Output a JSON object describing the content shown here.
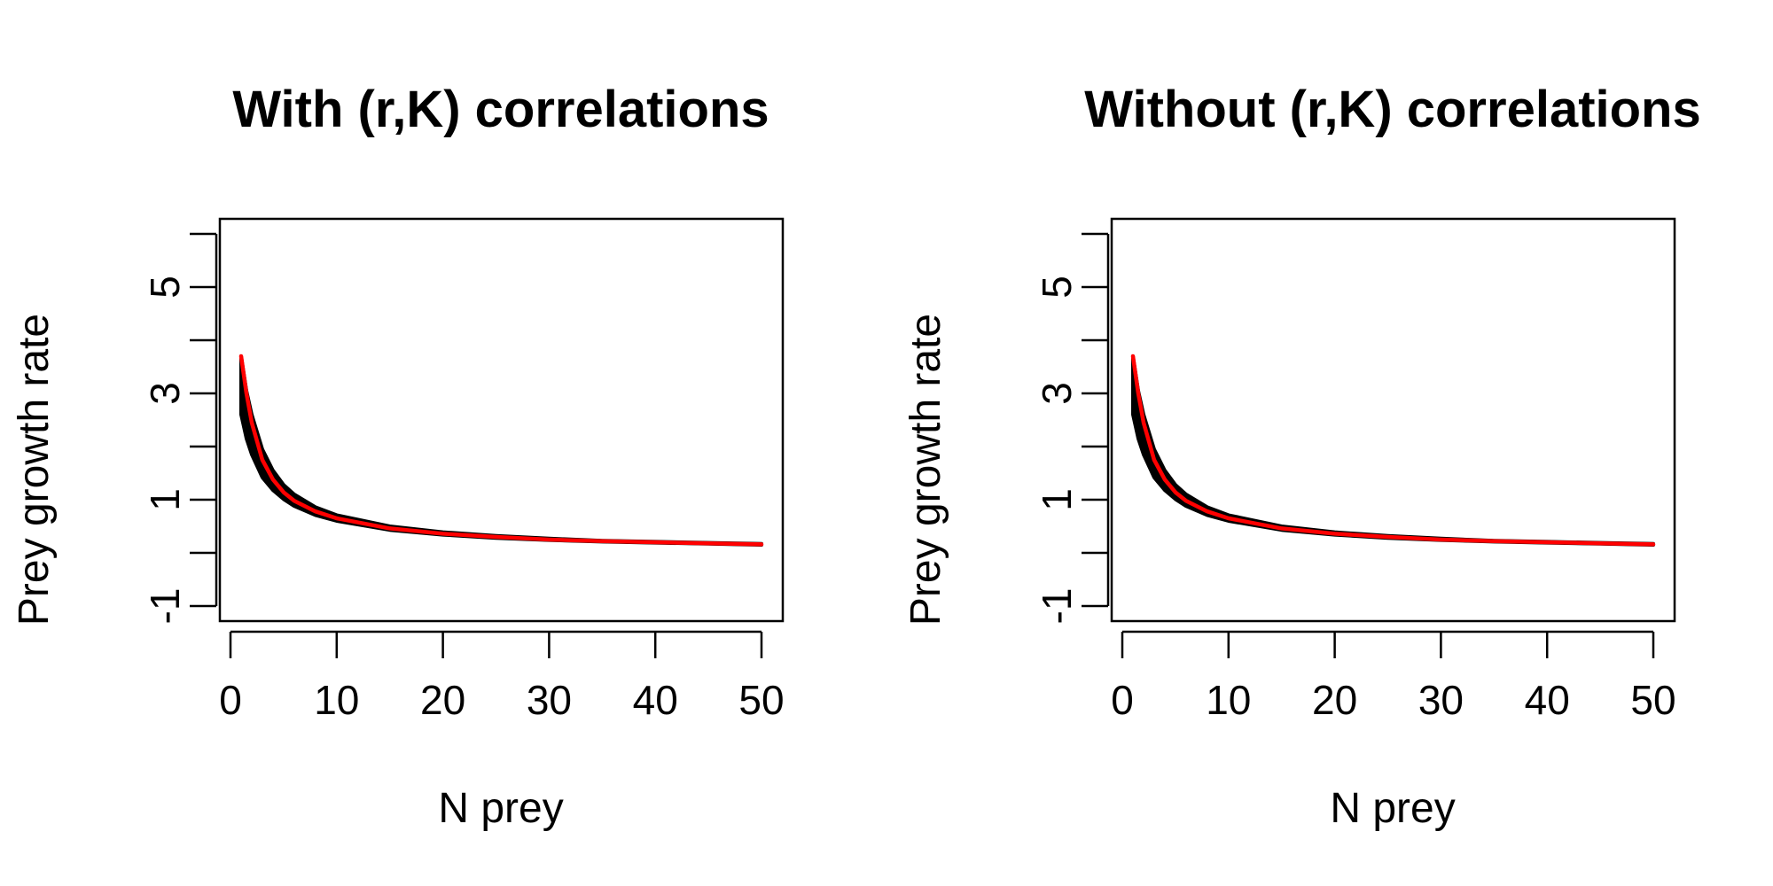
{
  "chart_data": [
    {
      "type": "line",
      "title": "With (r,K) correlations",
      "xlabel": "N prey",
      "ylabel": "Prey growth rate",
      "xlim": [
        0,
        50
      ],
      "ylim": [
        -1,
        6
      ],
      "x_ticks": [
        0,
        10,
        20,
        30,
        40,
        50
      ],
      "x_tick_labels": [
        "0",
        "10",
        "20",
        "30",
        "40",
        "50"
      ],
      "y_ticks": [
        -1,
        0,
        1,
        2,
        3,
        4,
        5,
        6
      ],
      "y_tick_labels": [
        "-1",
        "",
        "1",
        "",
        "3",
        "",
        "5",
        ""
      ],
      "grid": false,
      "legend": "none",
      "series": [
        {
          "style": "band",
          "color": "#000000",
          "x": [
            1,
            1.5,
            2,
            3,
            4,
            5,
            6,
            8,
            10,
            15,
            20,
            25,
            30,
            35,
            40,
            45,
            50
          ],
          "upper": [
            3.7,
            3.05,
            2.6,
            1.95,
            1.55,
            1.28,
            1.1,
            0.86,
            0.71,
            0.5,
            0.39,
            0.32,
            0.27,
            0.23,
            0.21,
            0.19,
            0.17
          ],
          "lower": [
            2.6,
            2.15,
            1.85,
            1.42,
            1.18,
            1.01,
            0.88,
            0.71,
            0.6,
            0.43,
            0.34,
            0.28,
            0.24,
            0.21,
            0.19,
            0.17,
            0.15
          ]
        },
        {
          "style": "line",
          "color": "#ff0000",
          "x": [
            1,
            1.5,
            2,
            3,
            4,
            5,
            6,
            8,
            10,
            15,
            20,
            25,
            30,
            35,
            40,
            45,
            50
          ],
          "y": [
            3.7,
            3.0,
            2.45,
            1.75,
            1.38,
            1.14,
            0.98,
            0.78,
            0.65,
            0.46,
            0.36,
            0.3,
            0.25,
            0.22,
            0.2,
            0.18,
            0.16
          ]
        }
      ]
    },
    {
      "type": "line",
      "title": "Without (r,K) correlations",
      "xlabel": "N prey",
      "ylabel": "Prey growth rate",
      "xlim": [
        0,
        50
      ],
      "ylim": [
        -1,
        6
      ],
      "x_ticks": [
        0,
        10,
        20,
        30,
        40,
        50
      ],
      "x_tick_labels": [
        "0",
        "10",
        "20",
        "30",
        "40",
        "50"
      ],
      "y_ticks": [
        -1,
        0,
        1,
        2,
        3,
        4,
        5,
        6
      ],
      "y_tick_labels": [
        "-1",
        "",
        "1",
        "",
        "3",
        "",
        "5",
        ""
      ],
      "grid": false,
      "legend": "none",
      "series": [
        {
          "style": "band",
          "color": "#000000",
          "x": [
            1,
            1.5,
            2,
            3,
            4,
            5,
            6,
            8,
            10,
            15,
            20,
            25,
            30,
            35,
            40,
            45,
            50
          ],
          "upper": [
            3.7,
            3.05,
            2.6,
            1.95,
            1.55,
            1.28,
            1.1,
            0.86,
            0.71,
            0.5,
            0.39,
            0.32,
            0.27,
            0.23,
            0.21,
            0.19,
            0.17
          ],
          "lower": [
            2.6,
            2.15,
            1.85,
            1.42,
            1.18,
            1.01,
            0.88,
            0.71,
            0.6,
            0.43,
            0.34,
            0.28,
            0.24,
            0.21,
            0.19,
            0.17,
            0.15
          ]
        },
        {
          "style": "line",
          "color": "#ff0000",
          "x": [
            1,
            1.5,
            2,
            3,
            4,
            5,
            6,
            8,
            10,
            15,
            20,
            25,
            30,
            35,
            40,
            45,
            50
          ],
          "y": [
            3.7,
            3.0,
            2.45,
            1.75,
            1.38,
            1.14,
            0.98,
            0.78,
            0.65,
            0.46,
            0.36,
            0.3,
            0.25,
            0.22,
            0.2,
            0.18,
            0.16
          ]
        }
      ]
    }
  ]
}
